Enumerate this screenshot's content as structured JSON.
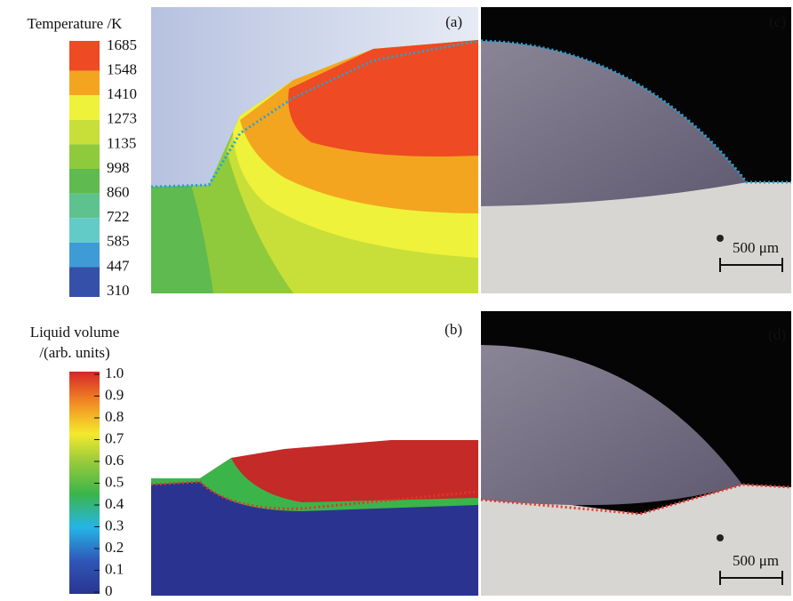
{
  "temperature_bar": {
    "title": "Temperature /K",
    "ticks": [
      "1685",
      "1548",
      "1410",
      "1273",
      "1135",
      "998",
      "860",
      "722",
      "585",
      "447",
      "310"
    ],
    "colors": [
      "#ee4a23",
      "#f4a51f",
      "#eff23a",
      "#c8df3a",
      "#8fca3c",
      "#5fba4f",
      "#5ec28e",
      "#62cbc7",
      "#3e9bd6",
      "#3550a8"
    ]
  },
  "liquid_bar": {
    "title_lines": [
      "Liquid volume",
      "/(arb. units)"
    ],
    "ticks": [
      "1.0",
      "0.9",
      "0.8",
      "0.7",
      "0.6",
      "0.5",
      "0.4",
      "0.3",
      "0.2",
      "0.1",
      "0"
    ]
  },
  "panels": {
    "a": "(a)",
    "b": "(b)",
    "c": "(c)",
    "d": "(d)"
  },
  "scale_bars": {
    "c": "500 μm",
    "d": "500 μm"
  }
}
